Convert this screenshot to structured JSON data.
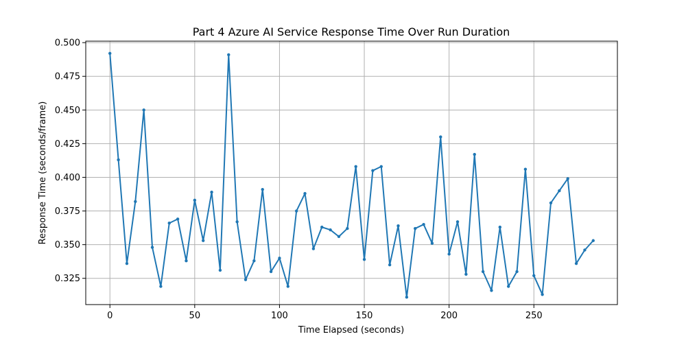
{
  "chart_data": {
    "type": "line",
    "title": "Part 4 Azure AI Service Response Time Over Run Duration",
    "xlabel": "Time Elapsed (seconds)",
    "ylabel": "Response Time (seconds/frame)",
    "xlim": [
      -14.25,
      299.25
    ],
    "ylim": [
      0.3055,
      0.5011
    ],
    "x_ticks": [
      0,
      50,
      100,
      150,
      200,
      250
    ],
    "y_ticks": [
      0.325,
      0.35,
      0.375,
      0.4,
      0.425,
      0.45,
      0.475,
      0.5
    ],
    "x_tick_labels": [
      "0",
      "50",
      "100",
      "150",
      "200",
      "250"
    ],
    "y_tick_labels": [
      "0.325",
      "0.350",
      "0.375",
      "0.400",
      "0.425",
      "0.450",
      "0.475",
      "0.500"
    ],
    "grid": true,
    "color": "#1f77b4",
    "series": [
      {
        "x": [
          0,
          5,
          10,
          15,
          20,
          25,
          30,
          35,
          40,
          45,
          50,
          55,
          60,
          65,
          70,
          75,
          80,
          85,
          90,
          95,
          100,
          105,
          110,
          115,
          120,
          125,
          130,
          135,
          140,
          145,
          150,
          155,
          160,
          165,
          170,
          175,
          180,
          185,
          190,
          195,
          200,
          205,
          210,
          215,
          220,
          225,
          230,
          235,
          240,
          245,
          250,
          255,
          260,
          265,
          270,
          275,
          280,
          285
        ],
        "y": [
          0.492,
          0.413,
          0.336,
          0.382,
          0.45,
          0.348,
          0.319,
          0.366,
          0.369,
          0.338,
          0.383,
          0.353,
          0.389,
          0.331,
          0.491,
          0.367,
          0.324,
          0.338,
          0.391,
          0.33,
          0.34,
          0.319,
          0.375,
          0.388,
          0.347,
          0.363,
          0.361,
          0.356,
          0.362,
          0.408,
          0.339,
          0.405,
          0.408,
          0.335,
          0.364,
          0.311,
          0.362,
          0.365,
          0.351,
          0.43,
          0.343,
          0.367,
          0.328,
          0.417,
          0.33,
          0.316,
          0.363,
          0.319,
          0.33,
          0.406,
          0.327,
          0.313,
          0.381,
          0.39,
          0.399,
          0.336,
          0.346,
          0.353
        ]
      }
    ]
  }
}
